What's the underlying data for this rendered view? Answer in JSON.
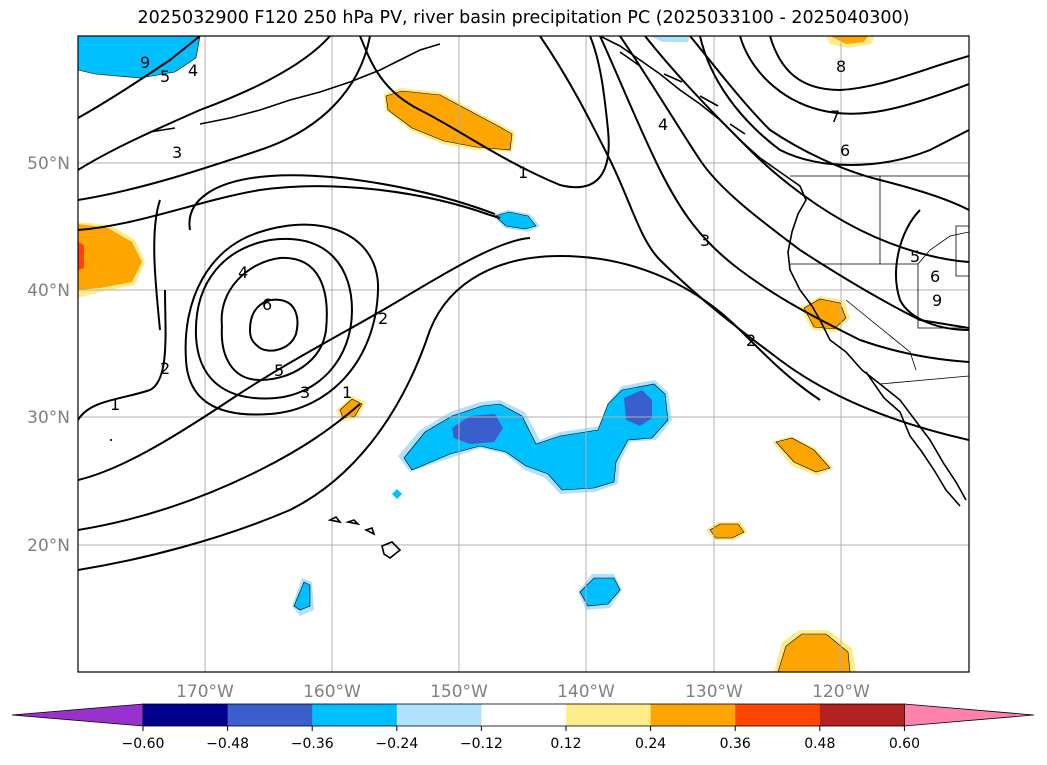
{
  "title": "2025032900 F120 250 hPa PV, river basin precipitation PC (2025033100 - 2025040300)",
  "map": {
    "lat_labels": [
      "50°N",
      "40°N",
      "30°N",
      "20°N"
    ],
    "lon_labels": [
      "170°W",
      "160°W",
      "150°W",
      "140°W",
      "130°W",
      "120°W"
    ],
    "pv_contour_labels": [
      "1",
      "2",
      "3",
      "4",
      "5",
      "6",
      "7",
      "8",
      "9",
      "1",
      "2",
      "3",
      "4",
      "5",
      "6",
      "1",
      "2",
      "3",
      "4",
      "5",
      "6",
      "9"
    ]
  },
  "colorbar": {
    "ticks": [
      "−0.60",
      "−0.48",
      "−0.36",
      "−0.24",
      "−0.12",
      "0.12",
      "0.24",
      "0.36",
      "0.48",
      "0.60"
    ],
    "colors": [
      "#9932cc",
      "#00008b",
      "#3a5fcd",
      "#00bfff",
      "#b0e2ff",
      "#ffffff",
      "#ffec8b",
      "#ffa500",
      "#ff4500",
      "#b22222",
      "#ff82ab"
    ]
  }
}
